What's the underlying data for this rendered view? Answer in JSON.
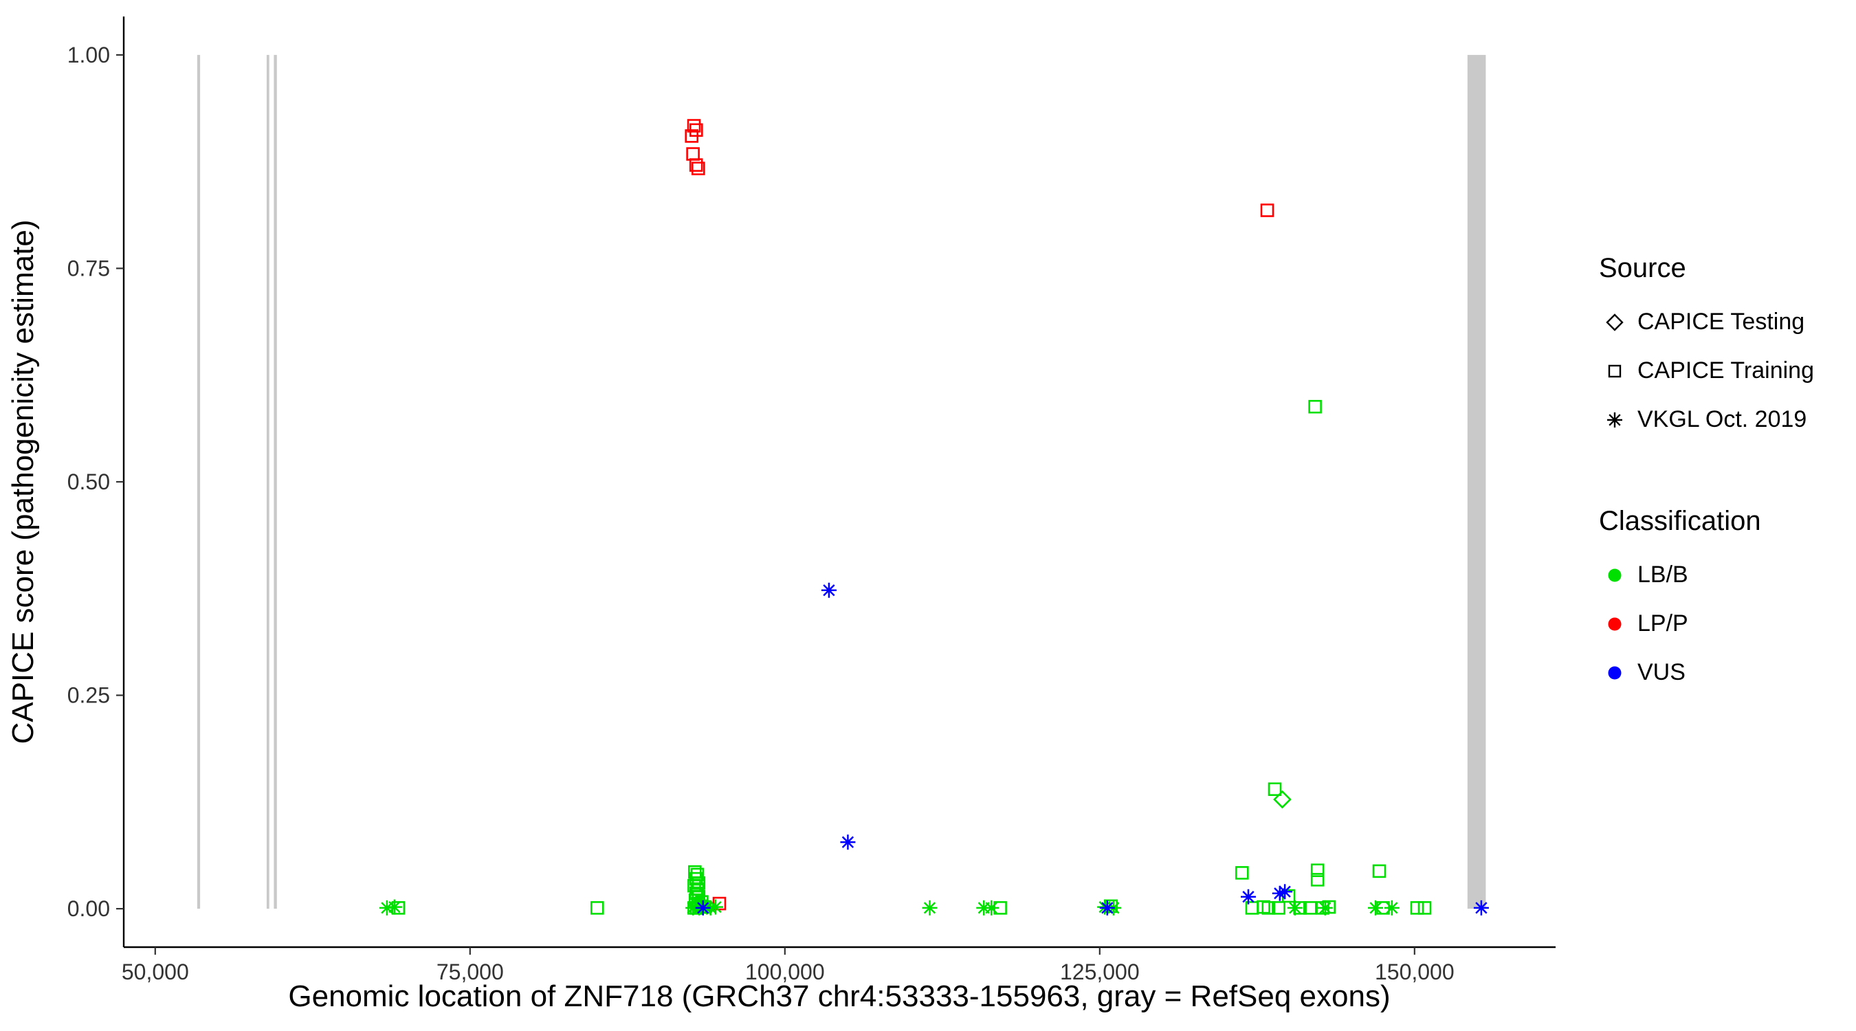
{
  "chart_data": {
    "type": "scatter",
    "title": "",
    "xlabel": "Genomic location of ZNF718 (GRCh37 chr4:53333-155963, gray = RefSeq exons)",
    "ylabel": "CAPICE score (pathogenicity estimate)",
    "xlim": [
      47500,
      161200
    ],
    "ylim": [
      -0.045,
      1.045
    ],
    "grid": "off",
    "legend_position": "right",
    "x_ticks": [
      {
        "value": 50000,
        "label": "50,000"
      },
      {
        "value": 75000,
        "label": "75,000"
      },
      {
        "value": 100000,
        "label": "100,000"
      },
      {
        "value": 125000,
        "label": "125,000"
      },
      {
        "value": 150000,
        "label": "150,000"
      }
    ],
    "y_ticks": [
      {
        "value": 0.0,
        "label": "0.00"
      },
      {
        "value": 0.25,
        "label": "0.25"
      },
      {
        "value": 0.5,
        "label": "0.50"
      },
      {
        "value": 0.75,
        "label": "0.75"
      },
      {
        "value": 1.0,
        "label": "1.00"
      }
    ],
    "exon_color": "#C9C9C9",
    "exons": [
      {
        "start": 53333,
        "end": 53560
      },
      {
        "start": 58850,
        "end": 59060
      },
      {
        "start": 59420,
        "end": 59660
      },
      {
        "start": 154200,
        "end": 155650
      }
    ],
    "colors": {
      "LB/B": "#00E000",
      "LP/P": "#FF0000",
      "VUS": "#0000FF"
    },
    "shapes": {
      "CAPICE Testing": "diamond",
      "CAPICE Training": "square",
      "VKGL Oct. 2019": "asterisk"
    },
    "points": [
      {
        "x": 142100,
        "y": 0.588,
        "classification": "LB/B",
        "source": "CAPICE Training"
      },
      {
        "x": 138900,
        "y": 0.14,
        "classification": "LB/B",
        "source": "CAPICE Training"
      },
      {
        "x": 92850,
        "y": 0.043,
        "classification": "LB/B",
        "source": "CAPICE Training"
      },
      {
        "x": 93050,
        "y": 0.04,
        "classification": "LB/B",
        "source": "CAPICE Training"
      },
      {
        "x": 92950,
        "y": 0.035,
        "classification": "LB/B",
        "source": "CAPICE Training"
      },
      {
        "x": 93150,
        "y": 0.03,
        "classification": "LB/B",
        "source": "CAPICE Training"
      },
      {
        "x": 92800,
        "y": 0.027,
        "classification": "LB/B",
        "source": "CAPICE Training"
      },
      {
        "x": 93050,
        "y": 0.023,
        "classification": "LB/B",
        "source": "CAPICE Training"
      },
      {
        "x": 92950,
        "y": 0.018,
        "classification": "LB/B",
        "source": "CAPICE Training"
      },
      {
        "x": 93150,
        "y": 0.014,
        "classification": "LB/B",
        "source": "CAPICE Training"
      },
      {
        "x": 92900,
        "y": 0.01,
        "classification": "LB/B",
        "source": "CAPICE Training"
      },
      {
        "x": 93100,
        "y": 0.006,
        "classification": "LB/B",
        "source": "CAPICE Training"
      },
      {
        "x": 93300,
        "y": 0.003,
        "classification": "LB/B",
        "source": "CAPICE Training"
      },
      {
        "x": 92800,
        "y": 0.001,
        "classification": "LB/B",
        "source": "CAPICE Training"
      },
      {
        "x": 93000,
        "y": 0.001,
        "classification": "LB/B",
        "source": "CAPICE Training"
      },
      {
        "x": 93400,
        "y": 0.008,
        "classification": "LB/B",
        "source": "CAPICE Training"
      },
      {
        "x": 93550,
        "y": 0.002,
        "classification": "LB/B",
        "source": "CAPICE Training"
      },
      {
        "x": 69300,
        "y": 0.001,
        "classification": "LB/B",
        "source": "CAPICE Training"
      },
      {
        "x": 85100,
        "y": 0.001,
        "classification": "LB/B",
        "source": "CAPICE Training"
      },
      {
        "x": 117100,
        "y": 0.001,
        "classification": "LB/B",
        "source": "CAPICE Training"
      },
      {
        "x": 125900,
        "y": 0.003,
        "classification": "LB/B",
        "source": "CAPICE Training"
      },
      {
        "x": 136300,
        "y": 0.042,
        "classification": "LB/B",
        "source": "CAPICE Training"
      },
      {
        "x": 137100,
        "y": 0.001,
        "classification": "LB/B",
        "source": "CAPICE Training"
      },
      {
        "x": 138000,
        "y": 0.002,
        "classification": "LB/B",
        "source": "CAPICE Training"
      },
      {
        "x": 138400,
        "y": 0.001,
        "classification": "LB/B",
        "source": "CAPICE Training"
      },
      {
        "x": 139200,
        "y": 0.001,
        "classification": "LB/B",
        "source": "CAPICE Training"
      },
      {
        "x": 140000,
        "y": 0.015,
        "classification": "LB/B",
        "source": "CAPICE Training"
      },
      {
        "x": 140900,
        "y": 0.001,
        "classification": "LB/B",
        "source": "CAPICE Training"
      },
      {
        "x": 141700,
        "y": 0.001,
        "classification": "LB/B",
        "source": "CAPICE Training"
      },
      {
        "x": 142300,
        "y": 0.045,
        "classification": "LB/B",
        "source": "CAPICE Training"
      },
      {
        "x": 142300,
        "y": 0.034,
        "classification": "LB/B",
        "source": "CAPICE Training"
      },
      {
        "x": 142700,
        "y": 0.001,
        "classification": "LB/B",
        "source": "CAPICE Training"
      },
      {
        "x": 143200,
        "y": 0.002,
        "classification": "LB/B",
        "source": "CAPICE Training"
      },
      {
        "x": 147200,
        "y": 0.044,
        "classification": "LB/B",
        "source": "CAPICE Training"
      },
      {
        "x": 147500,
        "y": 0.001,
        "classification": "LB/B",
        "source": "CAPICE Training"
      },
      {
        "x": 150200,
        "y": 0.001,
        "classification": "LB/B",
        "source": "CAPICE Training"
      },
      {
        "x": 150800,
        "y": 0.001,
        "classification": "LB/B",
        "source": "CAPICE Training"
      },
      {
        "x": 92600,
        "y": 0.905,
        "classification": "LP/P",
        "source": "CAPICE Training"
      },
      {
        "x": 92780,
        "y": 0.917,
        "classification": "LP/P",
        "source": "CAPICE Training"
      },
      {
        "x": 92960,
        "y": 0.912,
        "classification": "LP/P",
        "source": "CAPICE Training"
      },
      {
        "x": 92700,
        "y": 0.884,
        "classification": "LP/P",
        "source": "CAPICE Training"
      },
      {
        "x": 92950,
        "y": 0.871,
        "classification": "LP/P",
        "source": "CAPICE Training"
      },
      {
        "x": 93120,
        "y": 0.867,
        "classification": "LP/P",
        "source": "CAPICE Training"
      },
      {
        "x": 138300,
        "y": 0.818,
        "classification": "LP/P",
        "source": "CAPICE Training"
      },
      {
        "x": 94800,
        "y": 0.006,
        "classification": "LP/P",
        "source": "CAPICE Training"
      },
      {
        "x": 139500,
        "y": 0.128,
        "classification": "LB/B",
        "source": "CAPICE Testing"
      },
      {
        "x": 68400,
        "y": 0.001,
        "classification": "LB/B",
        "source": "VKGL Oct. 2019"
      },
      {
        "x": 69000,
        "y": 0.002,
        "classification": "LB/B",
        "source": "VKGL Oct. 2019"
      },
      {
        "x": 92700,
        "y": 0.001,
        "classification": "LB/B",
        "source": "VKGL Oct. 2019"
      },
      {
        "x": 93200,
        "y": 0.001,
        "classification": "LB/B",
        "source": "VKGL Oct. 2019"
      },
      {
        "x": 93800,
        "y": 0.002,
        "classification": "LB/B",
        "source": "VKGL Oct. 2019"
      },
      {
        "x": 94100,
        "y": 0.001,
        "classification": "LB/B",
        "source": "VKGL Oct. 2019"
      },
      {
        "x": 94500,
        "y": 0.002,
        "classification": "LB/B",
        "source": "VKGL Oct. 2019"
      },
      {
        "x": 111500,
        "y": 0.001,
        "classification": "LB/B",
        "source": "VKGL Oct. 2019"
      },
      {
        "x": 115800,
        "y": 0.001,
        "classification": "LB/B",
        "source": "VKGL Oct. 2019"
      },
      {
        "x": 116400,
        "y": 0.001,
        "classification": "LB/B",
        "source": "VKGL Oct. 2019"
      },
      {
        "x": 125400,
        "y": 0.002,
        "classification": "LB/B",
        "source": "VKGL Oct. 2019"
      },
      {
        "x": 126100,
        "y": 0.001,
        "classification": "LB/B",
        "source": "VKGL Oct. 2019"
      },
      {
        "x": 140500,
        "y": 0.001,
        "classification": "LB/B",
        "source": "VKGL Oct. 2019"
      },
      {
        "x": 142900,
        "y": 0.001,
        "classification": "LB/B",
        "source": "VKGL Oct. 2019"
      },
      {
        "x": 146900,
        "y": 0.001,
        "classification": "LB/B",
        "source": "VKGL Oct. 2019"
      },
      {
        "x": 148200,
        "y": 0.001,
        "classification": "LB/B",
        "source": "VKGL Oct. 2019"
      },
      {
        "x": 103500,
        "y": 0.373,
        "classification": "VUS",
        "source": "VKGL Oct. 2019"
      },
      {
        "x": 105000,
        "y": 0.078,
        "classification": "VUS",
        "source": "VKGL Oct. 2019"
      },
      {
        "x": 93500,
        "y": 0.001,
        "classification": "VUS",
        "source": "VKGL Oct. 2019"
      },
      {
        "x": 125600,
        "y": 0.001,
        "classification": "VUS",
        "source": "VKGL Oct. 2019"
      },
      {
        "x": 136800,
        "y": 0.014,
        "classification": "VUS",
        "source": "VKGL Oct. 2019"
      },
      {
        "x": 139300,
        "y": 0.018,
        "classification": "VUS",
        "source": "VKGL Oct. 2019"
      },
      {
        "x": 139700,
        "y": 0.02,
        "classification": "VUS",
        "source": "VKGL Oct. 2019"
      },
      {
        "x": 155300,
        "y": 0.001,
        "classification": "VUS",
        "source": "VKGL Oct. 2019"
      }
    ]
  },
  "legend": {
    "source": {
      "title": "Source",
      "items": [
        {
          "label": "CAPICE Testing",
          "shape": "diamond"
        },
        {
          "label": "CAPICE Training",
          "shape": "square"
        },
        {
          "label": "VKGL Oct. 2019",
          "shape": "asterisk"
        }
      ]
    },
    "classification": {
      "title": "Classification",
      "items": [
        {
          "label": "LB/B",
          "color": "#00E000"
        },
        {
          "label": "LP/P",
          "color": "#FF0000"
        },
        {
          "label": "VUS",
          "color": "#0000FF"
        }
      ]
    }
  }
}
